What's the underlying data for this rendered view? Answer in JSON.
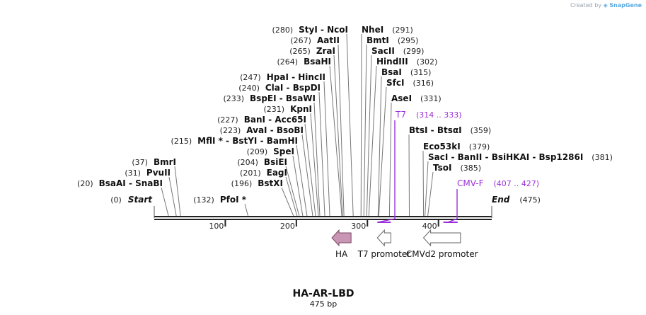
{
  "credit": {
    "prefix": "Created by",
    "brand": "SnapGene"
  },
  "map": {
    "length": 475,
    "title": "HA-AR-LBD",
    "subtitle": "475 bp"
  },
  "ends": [
    {
      "name": "Start",
      "pos": 0,
      "pos_label": "(0)",
      "side": "left"
    },
    {
      "name": "End",
      "pos": 475,
      "pos_label": "(475)",
      "side": "right"
    }
  ],
  "ticks": [
    {
      "pos": 100,
      "label": "100"
    },
    {
      "pos": 200,
      "label": "200"
    },
    {
      "pos": 300,
      "label": "300"
    },
    {
      "pos": 400,
      "label": "400"
    }
  ],
  "sites_left": [
    {
      "names": [
        "StyI",
        "NcoI"
      ],
      "label": "StyI  - NcoI",
      "pos_label": "(280)",
      "pos": 280
    },
    {
      "names": [
        "AatII"
      ],
      "label": "AatII",
      "pos_label": "(267)",
      "pos": 267
    },
    {
      "names": [
        "ZraI"
      ],
      "label": "ZraI",
      "pos_label": "(265)",
      "pos": 265
    },
    {
      "names": [
        "BsaHI"
      ],
      "label": "BsaHI",
      "pos_label": "(264)",
      "pos": 264
    },
    {
      "names": [
        "HpaI",
        "HincII"
      ],
      "label": "HpaI  - HincII",
      "pos_label": "(247)",
      "pos": 247
    },
    {
      "names": [
        "ClaI",
        "BspDI"
      ],
      "label": "ClaI  - BspDI",
      "pos_label": "(240)",
      "pos": 240
    },
    {
      "names": [
        "BspEI",
        "BsaWI"
      ],
      "label": "BspEI  - BsaWI",
      "pos_label": "(233)",
      "pos": 233
    },
    {
      "names": [
        "KpnI"
      ],
      "label": "KpnI",
      "pos_label": "(231)",
      "pos": 231
    },
    {
      "names": [
        "BanI",
        "Acc65I"
      ],
      "label": "BanI  - Acc65I",
      "pos_label": "(227)",
      "pos": 227
    },
    {
      "names": [
        "AvaI",
        "BsoBI"
      ],
      "label": "AvaI  - BsoBI",
      "pos_label": "(223)",
      "pos": 223
    },
    {
      "names": [
        "MflI *",
        "BstYI",
        "BamHI"
      ],
      "label": "MflI *  - BstYI  - BamHI",
      "pos_label": "(215)",
      "pos": 215
    },
    {
      "names": [
        "SpeI"
      ],
      "label": "SpeI",
      "pos_label": "(209)",
      "pos": 209
    },
    {
      "names": [
        "BsiEI"
      ],
      "label": "BsiEI",
      "pos_label": "(204)",
      "pos": 204
    },
    {
      "names": [
        "EagI"
      ],
      "label": "EagI",
      "pos_label": "(201)",
      "pos": 201
    },
    {
      "names": [
        "BstXI"
      ],
      "label": "BstXI",
      "pos_label": "(196)",
      "pos": 196
    },
    {
      "names": [
        "PfoI *"
      ],
      "label": "PfoI *",
      "pos_label": "(132)",
      "pos": 132
    },
    {
      "names": [
        "BmrI"
      ],
      "label": "BmrI",
      "pos_label": "(37)",
      "pos": 37
    },
    {
      "names": [
        "PvuII"
      ],
      "label": "PvuII",
      "pos_label": "(31)",
      "pos": 31
    },
    {
      "names": [
        "BsaAI",
        "SnaBI"
      ],
      "label": "BsaAI  - SnaBI",
      "pos_label": "(20)",
      "pos": 20
    }
  ],
  "sites_right": [
    {
      "names": [
        "NheI"
      ],
      "label": "NheI",
      "pos_label": "(291)",
      "pos": 291
    },
    {
      "names": [
        "BmtI"
      ],
      "label": "BmtI",
      "pos_label": "(295)",
      "pos": 295
    },
    {
      "names": [
        "SacII"
      ],
      "label": "SacII",
      "pos_label": "(299)",
      "pos": 299
    },
    {
      "names": [
        "HindIII"
      ],
      "label": "HindIII",
      "pos_label": "(302)",
      "pos": 302
    },
    {
      "names": [
        "BsaI"
      ],
      "label": "BsaI",
      "pos_label": "(315)",
      "pos": 315
    },
    {
      "names": [
        "SfcI"
      ],
      "label": "SfcI",
      "pos_label": "(316)",
      "pos": 316
    },
    {
      "names": [
        "AseI"
      ],
      "label": "AseI",
      "pos_label": "(331)",
      "pos": 331
    },
    {
      "names": [
        "BtsI",
        "BtsαI"
      ],
      "label": "BtsI  - BtsαI",
      "pos_label": "(359)",
      "pos": 359
    },
    {
      "names": [
        "Eco53kI"
      ],
      "label": "Eco53kI",
      "pos_label": "(379)",
      "pos": 379
    },
    {
      "names": [
        "SacI",
        "BanII",
        "BsiHKAI",
        "Bsp1286I"
      ],
      "label": "SacI  - BanII  - BsiHKAI  - Bsp1286I",
      "pos_label": "(381)",
      "pos": 381
    },
    {
      "names": [
        "TsoI"
      ],
      "label": "TsoI",
      "pos_label": "(385)",
      "pos": 385
    }
  ],
  "primers": [
    {
      "name": "T7",
      "range_label": "(314 .. 333)",
      "start": 314,
      "end": 333,
      "color": "#9b30d9"
    },
    {
      "name": "CMV-F",
      "range_label": "(407 .. 427)",
      "start": 407,
      "end": 427,
      "color": "#9b30d9"
    }
  ],
  "features": [
    {
      "name": "HA",
      "start": 250,
      "end": 277,
      "direction": "reverse",
      "fill": "#c995b4",
      "stroke": "#7b4a66"
    },
    {
      "name": "T7 promoter",
      "start": 314,
      "end": 333,
      "direction": "reverse",
      "fill": "#ffffff",
      "stroke": "#666666"
    },
    {
      "name": "CMVd2 promoter",
      "start": 379,
      "end": 431,
      "direction": "reverse",
      "fill": "#ffffff",
      "stroke": "#666666"
    }
  ]
}
